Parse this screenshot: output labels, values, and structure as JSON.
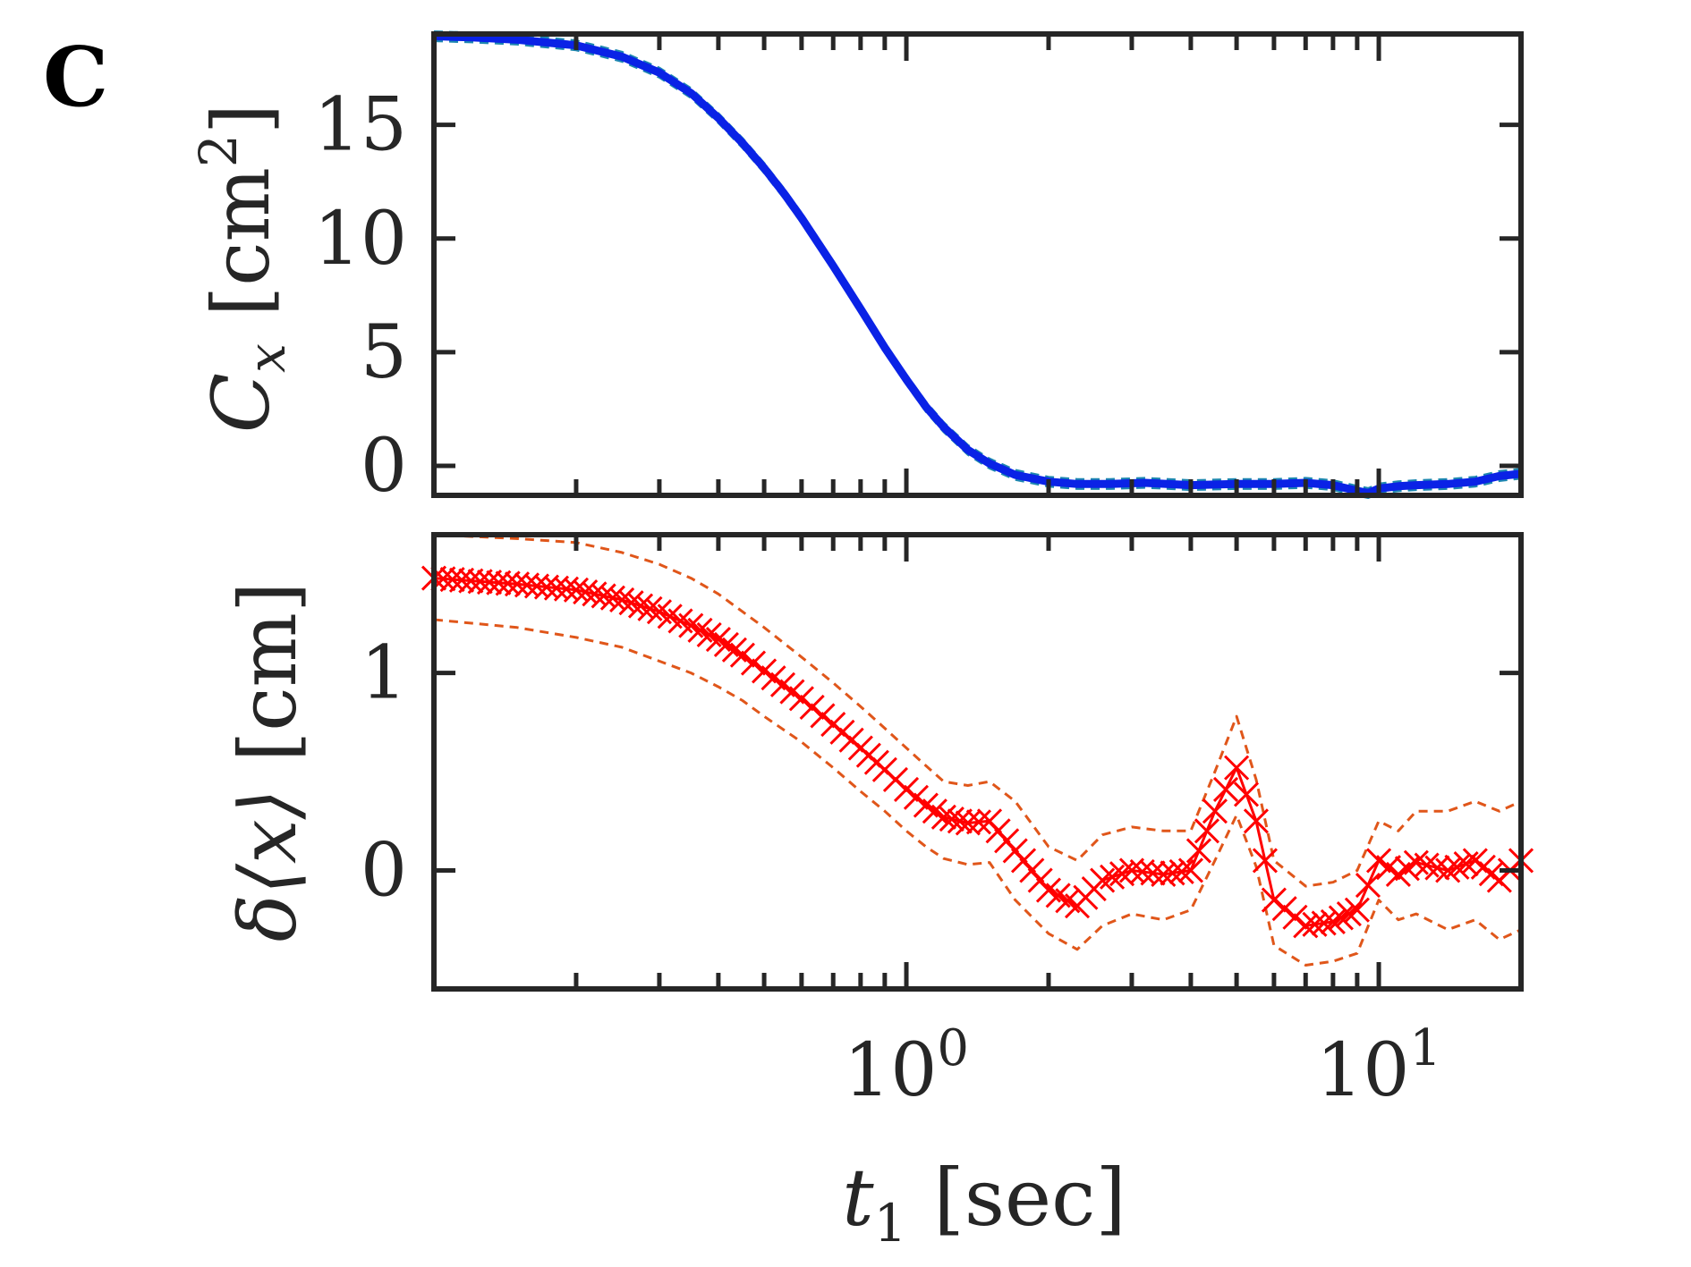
{
  "panel_label": "C",
  "colors": {
    "axis": "#262626",
    "top_line": "#0a22e6",
    "top_band": "#1e88b0",
    "bottom_line": "#ff0000",
    "bottom_band": "#e0561a"
  },
  "chart_data": [
    {
      "type": "line",
      "x_scale": "log",
      "xlim": [
        0.1,
        20
      ],
      "ylim": [
        -1.3,
        19
      ],
      "ylabel": {
        "main": "C",
        "sub": "x",
        "unit_open": "[",
        "unit": "cm",
        "unit_sup": "2",
        "unit_close": "]"
      },
      "yticks": [
        0,
        5,
        10,
        15
      ],
      "ytick_labels": [
        "0",
        "5",
        "10",
        "15"
      ],
      "x": [
        0.1,
        0.12,
        0.15,
        0.2,
        0.25,
        0.3,
        0.35,
        0.4,
        0.45,
        0.5,
        0.55,
        0.6,
        0.7,
        0.8,
        0.9,
        1.0,
        1.1,
        1.2,
        1.35,
        1.5,
        1.7,
        2.0,
        2.3,
        2.7,
        3.2,
        4.0,
        5.0,
        6.0,
        7.0,
        8.0,
        9.0,
        9.5,
        10.0,
        11.0,
        12.0,
        14.0,
        16.0,
        18.0,
        20.0
      ],
      "series": [
        {
          "name": "C_x",
          "style": "solid",
          "values": [
            18.9,
            18.85,
            18.75,
            18.5,
            18.0,
            17.3,
            16.4,
            15.3,
            14.2,
            13.1,
            12.0,
            10.9,
            8.8,
            6.9,
            5.2,
            3.8,
            2.6,
            1.7,
            0.7,
            0.1,
            -0.4,
            -0.7,
            -0.8,
            -0.8,
            -0.75,
            -0.85,
            -0.8,
            -0.8,
            -0.75,
            -0.85,
            -1.1,
            -1.2,
            -1.0,
            -0.9,
            -0.85,
            -0.8,
            -0.7,
            -0.45,
            -0.35
          ]
        },
        {
          "name": "upper",
          "style": "dashed",
          "values": [
            19.1,
            19.05,
            18.95,
            18.7,
            18.2,
            17.5,
            16.6,
            15.5,
            14.4,
            13.3,
            12.2,
            11.1,
            9.0,
            7.1,
            5.4,
            4.0,
            2.8,
            1.9,
            0.9,
            0.3,
            -0.2,
            -0.5,
            -0.6,
            -0.6,
            -0.55,
            -0.65,
            -0.6,
            -0.6,
            -0.55,
            -0.65,
            -0.9,
            -1.0,
            -0.8,
            -0.7,
            -0.65,
            -0.6,
            -0.5,
            -0.25,
            -0.15
          ]
        },
        {
          "name": "lower",
          "style": "dashed",
          "values": [
            18.7,
            18.65,
            18.55,
            18.3,
            17.8,
            17.1,
            16.2,
            15.1,
            14.0,
            12.9,
            11.8,
            10.7,
            8.6,
            6.7,
            5.0,
            3.6,
            2.4,
            1.5,
            0.5,
            -0.1,
            -0.6,
            -0.9,
            -1.0,
            -1.0,
            -0.95,
            -1.05,
            -1.0,
            -1.0,
            -0.95,
            -1.05,
            -1.3,
            -1.4,
            -1.2,
            -1.1,
            -1.05,
            -1.0,
            -0.9,
            -0.65,
            -0.55
          ]
        }
      ]
    },
    {
      "type": "line",
      "x_scale": "log",
      "xlim": [
        0.1,
        20
      ],
      "ylim": [
        -0.6,
        1.7
      ],
      "ylabel": {
        "main": "δ⟨x⟩",
        "unit_open": "[",
        "unit": "cm",
        "unit_close": "]"
      },
      "yticks": [
        0,
        1
      ],
      "ytick_labels": [
        "0",
        "1"
      ],
      "xticks": [
        1,
        10
      ],
      "xtick_labels": [
        {
          "base": "10",
          "exp": "0"
        },
        {
          "base": "10",
          "exp": "1"
        }
      ],
      "xlabel": {
        "main": "t",
        "sub": "1",
        "unit_open": "[",
        "unit": "sec",
        "unit_close": "]"
      },
      "marker": "x",
      "x": [
        0.1,
        0.15,
        0.2,
        0.25,
        0.3,
        0.35,
        0.4,
        0.45,
        0.5,
        0.6,
        0.7,
        0.8,
        0.9,
        1.0,
        1.1,
        1.2,
        1.35,
        1.5,
        1.7,
        2.0,
        2.3,
        2.6,
        3.0,
        3.5,
        4.0,
        4.5,
        5.0,
        5.5,
        6.0,
        7.0,
        8.0,
        9.0,
        10.0,
        11.0,
        12.0,
        14.0,
        16.0,
        18.0,
        20.0
      ],
      "series": [
        {
          "name": "delta_x",
          "style": "solid",
          "values": [
            1.48,
            1.45,
            1.42,
            1.37,
            1.31,
            1.24,
            1.17,
            1.09,
            1.01,
            0.87,
            0.74,
            0.62,
            0.51,
            0.41,
            0.33,
            0.27,
            0.24,
            0.25,
            0.1,
            -0.1,
            -0.18,
            -0.05,
            0.0,
            -0.02,
            0.0,
            0.3,
            0.52,
            0.25,
            -0.15,
            -0.28,
            -0.26,
            -0.2,
            0.05,
            -0.02,
            0.04,
            0.0,
            0.05,
            -0.05,
            0.05
          ]
        },
        {
          "name": "upper",
          "style": "dashed",
          "values": [
            1.7,
            1.68,
            1.66,
            1.61,
            1.55,
            1.48,
            1.4,
            1.31,
            1.23,
            1.08,
            0.95,
            0.83,
            0.72,
            0.62,
            0.53,
            0.45,
            0.43,
            0.45,
            0.35,
            0.12,
            0.05,
            0.18,
            0.22,
            0.2,
            0.2,
            0.5,
            0.78,
            0.46,
            0.05,
            -0.08,
            -0.06,
            0.0,
            0.25,
            0.2,
            0.3,
            0.3,
            0.35,
            0.3,
            0.35
          ]
        },
        {
          "name": "lower",
          "style": "dashed",
          "values": [
            1.27,
            1.23,
            1.18,
            1.13,
            1.06,
            1.0,
            0.93,
            0.86,
            0.78,
            0.65,
            0.52,
            0.4,
            0.3,
            0.2,
            0.12,
            0.06,
            0.03,
            0.04,
            -0.15,
            -0.32,
            -0.4,
            -0.28,
            -0.22,
            -0.25,
            -0.2,
            0.05,
            0.28,
            0.02,
            -0.38,
            -0.48,
            -0.46,
            -0.42,
            -0.15,
            -0.25,
            -0.22,
            -0.3,
            -0.25,
            -0.35,
            -0.3
          ]
        }
      ]
    }
  ]
}
